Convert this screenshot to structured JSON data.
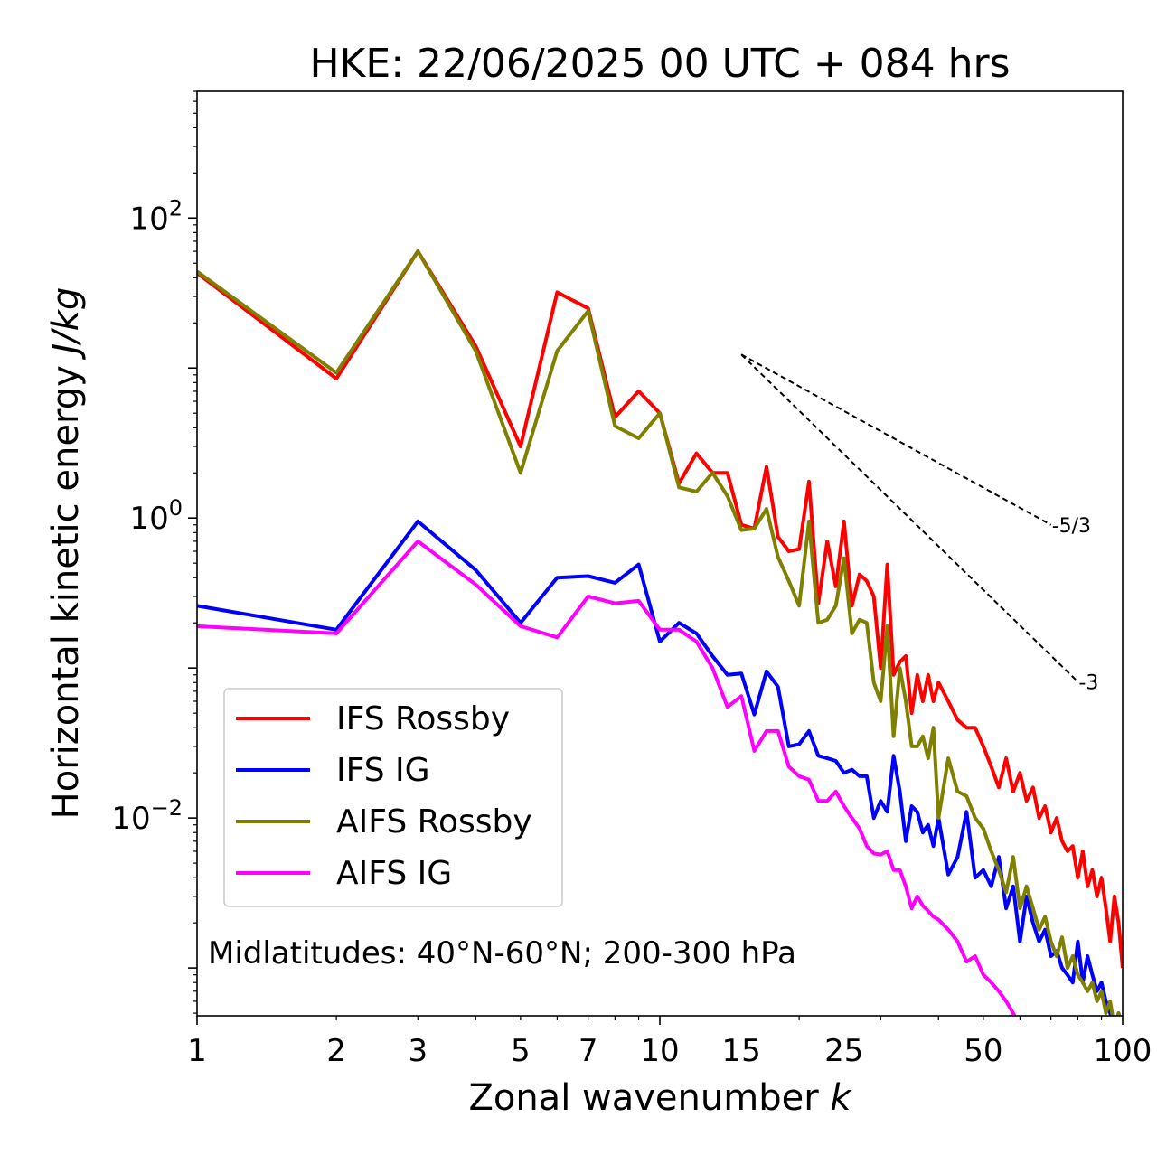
{
  "chart_data": {
    "type": "line",
    "title": "HKE: 22/06/2025 00 UTC + 084 hrs",
    "xlabel": "Zonal wavenumber",
    "xlabel_var": "k",
    "ylabel": "Horizontal kinetic energy",
    "ylabel_unit": "J/kg",
    "xscale": "log",
    "yscale": "log",
    "xlim": [
      1,
      100
    ],
    "ylim": [
      0.00048,
      700
    ],
    "x_ticks": [
      {
        "value": 1,
        "label": "1"
      },
      {
        "value": 2,
        "label": "2"
      },
      {
        "value": 3,
        "label": "3"
      },
      {
        "value": 5,
        "label": "5"
      },
      {
        "value": 7,
        "label": "7"
      },
      {
        "value": 10,
        "label": "10"
      },
      {
        "value": 15,
        "label": "15"
      },
      {
        "value": 25,
        "label": "25"
      },
      {
        "value": 50,
        "label": "50"
      },
      {
        "value": 100,
        "label": "100"
      }
    ],
    "y_ticks": [
      {
        "value": 0.01,
        "base": "10",
        "exp": "−2"
      },
      {
        "value": 1,
        "base": "10",
        "exp": "0"
      },
      {
        "value": 100,
        "base": "10",
        "exp": "2"
      }
    ],
    "annotation": "Midlatitudes: 40°N-60°N; 200-300 hPa",
    "legend_position": "lower-left",
    "reference_lines": [
      {
        "label": "-5/3",
        "x": [
          15,
          70
        ],
        "y": [
          12.3,
          0.9
        ]
      },
      {
        "label": "-3",
        "x": [
          15,
          80
        ],
        "y": [
          12.3,
          0.081
        ]
      }
    ],
    "series": [
      {
        "name": "IFS Rossby",
        "color": "#ff0000",
        "x": [
          1,
          2,
          3,
          4,
          5,
          6,
          7,
          8,
          9,
          10,
          11,
          12,
          13,
          14,
          15,
          16,
          17,
          18,
          19,
          20,
          21,
          22,
          23,
          24,
          25,
          26,
          27,
          28,
          29,
          30,
          31,
          32,
          33,
          34,
          35,
          36,
          37,
          38,
          39,
          40,
          42,
          44,
          46,
          48,
          50,
          52,
          54,
          56,
          58,
          60,
          62,
          64,
          66,
          68,
          70,
          72,
          74,
          76,
          78,
          80,
          82,
          84,
          86,
          88,
          90,
          92,
          94,
          96,
          98,
          100
        ],
        "y": [
          43,
          8.5,
          60,
          14,
          3.0,
          32,
          25,
          4.7,
          7.0,
          5.0,
          1.7,
          2.7,
          2.0,
          2.0,
          0.9,
          0.85,
          2.2,
          0.75,
          0.6,
          0.62,
          1.75,
          0.27,
          0.7,
          0.35,
          0.95,
          0.26,
          0.42,
          0.38,
          0.3,
          0.1,
          0.49,
          0.09,
          0.11,
          0.12,
          0.05,
          0.09,
          0.06,
          0.09,
          0.06,
          0.08,
          0.06,
          0.045,
          0.04,
          0.04,
          0.03,
          0.022,
          0.016,
          0.025,
          0.015,
          0.02,
          0.013,
          0.016,
          0.01,
          0.012,
          0.008,
          0.01,
          0.007,
          0.006,
          0.0065,
          0.004,
          0.006,
          0.0035,
          0.0045,
          0.003,
          0.004,
          0.0025,
          0.0015,
          0.003,
          0.002,
          0.001
        ]
      },
      {
        "name": "IFS IG",
        "color": "#0000ff",
        "x": [
          1,
          2,
          3,
          4,
          5,
          6,
          7,
          8,
          9,
          10,
          11,
          12,
          13,
          14,
          15,
          16,
          17,
          18,
          19,
          20,
          21,
          22,
          23,
          24,
          25,
          26,
          27,
          28,
          29,
          30,
          31,
          32,
          33,
          34,
          35,
          36,
          37,
          38,
          39,
          40,
          42,
          44,
          46,
          48,
          50,
          52,
          54,
          56,
          58,
          60,
          62,
          64,
          66,
          68,
          70,
          72,
          74,
          76,
          78,
          80,
          82,
          84,
          86,
          88,
          90,
          92,
          94,
          96,
          98,
          100
        ],
        "y": [
          0.26,
          0.18,
          0.95,
          0.45,
          0.2,
          0.4,
          0.41,
          0.37,
          0.49,
          0.15,
          0.2,
          0.17,
          0.12,
          0.09,
          0.092,
          0.049,
          0.095,
          0.075,
          0.03,
          0.031,
          0.038,
          0.026,
          0.025,
          0.024,
          0.02,
          0.021,
          0.019,
          0.019,
          0.01,
          0.013,
          0.011,
          0.026,
          0.015,
          0.007,
          0.012,
          0.011,
          0.008,
          0.009,
          0.0065,
          0.01,
          0.0042,
          0.0055,
          0.011,
          0.004,
          0.0045,
          0.0035,
          0.0055,
          0.0025,
          0.0035,
          0.0015,
          0.003,
          0.002,
          0.0015,
          0.0018,
          0.0012,
          0.0013,
          0.001,
          0.0009,
          0.0008,
          0.0015,
          0.0008,
          0.0012,
          0.0009,
          0.0007,
          0.0008,
          0.0006,
          0.0005,
          0.0004,
          0.0005,
          0.0004
        ]
      },
      {
        "name": "AIFS Rossby",
        "color": "#808000",
        "x": [
          1,
          2,
          3,
          4,
          5,
          6,
          7,
          8,
          9,
          10,
          11,
          12,
          13,
          14,
          15,
          16,
          17,
          18,
          19,
          20,
          21,
          22,
          23,
          24,
          25,
          26,
          27,
          28,
          29,
          30,
          31,
          32,
          33,
          34,
          35,
          36,
          37,
          38,
          39,
          40,
          42,
          44,
          46,
          48,
          50,
          52,
          54,
          56,
          58,
          60,
          62,
          64,
          66,
          68,
          70,
          72,
          74,
          76,
          78,
          80,
          82,
          84,
          86,
          88,
          90,
          92,
          94,
          96,
          98,
          100
        ],
        "y": [
          44,
          9.3,
          60,
          13,
          2.0,
          13,
          24,
          4.1,
          3.4,
          5.0,
          1.6,
          1.5,
          2.0,
          1.4,
          0.83,
          0.85,
          1.15,
          0.55,
          0.38,
          0.26,
          0.95,
          0.2,
          0.21,
          0.26,
          0.54,
          0.17,
          0.21,
          0.2,
          0.08,
          0.06,
          0.19,
          0.035,
          0.1,
          0.06,
          0.03,
          0.03,
          0.035,
          0.025,
          0.04,
          0.01,
          0.025,
          0.015,
          0.014,
          0.01,
          0.0085,
          0.006,
          0.0045,
          0.0032,
          0.0055,
          0.0025,
          0.0035,
          0.0025,
          0.0018,
          0.0022,
          0.0015,
          0.0012,
          0.0016,
          0.001,
          0.0012,
          0.0009,
          0.0008,
          0.0007,
          0.0008,
          0.0006,
          0.0007,
          0.0005,
          0.0006,
          0.0004,
          0.0005,
          0.0004
        ]
      },
      {
        "name": "AIFS IG",
        "color": "#ff00ff",
        "x": [
          1,
          2,
          3,
          4,
          5,
          6,
          7,
          8,
          9,
          10,
          11,
          12,
          13,
          14,
          15,
          16,
          17,
          18,
          19,
          20,
          21,
          22,
          23,
          24,
          25,
          26,
          27,
          28,
          29,
          30,
          31,
          32,
          33,
          34,
          35,
          36,
          37,
          38,
          39,
          40,
          42,
          44,
          46,
          48,
          50,
          52,
          54,
          56,
          58,
          60
        ],
        "y": [
          0.19,
          0.17,
          0.7,
          0.36,
          0.19,
          0.16,
          0.3,
          0.27,
          0.28,
          0.18,
          0.18,
          0.15,
          0.1,
          0.055,
          0.065,
          0.028,
          0.038,
          0.038,
          0.022,
          0.019,
          0.018,
          0.013,
          0.013,
          0.015,
          0.012,
          0.01,
          0.0085,
          0.0065,
          0.0058,
          0.0057,
          0.006,
          0.0045,
          0.0045,
          0.0035,
          0.0025,
          0.003,
          0.0026,
          0.0024,
          0.0022,
          0.0021,
          0.0018,
          0.0015,
          0.0011,
          0.0012,
          0.0009,
          0.0008,
          0.0007,
          0.0006,
          0.0005,
          0.0004
        ]
      }
    ]
  }
}
